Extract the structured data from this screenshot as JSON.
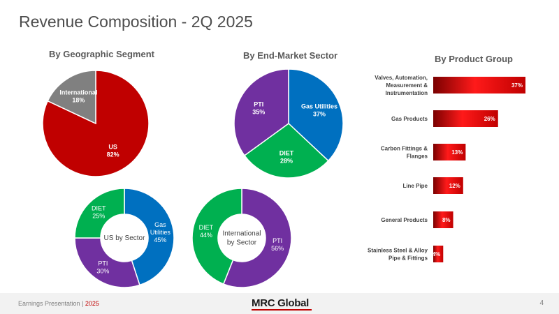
{
  "page": {
    "title": "Revenue Composition - 2Q 2025"
  },
  "sections": {
    "geographic": "By Geographic Segment",
    "end_market": "By End-Market Sector",
    "product": "By Product Group"
  },
  "footer": {
    "label": "Earnings Presentation",
    "separator": " | ",
    "year": "2025",
    "logo": "MRC Global",
    "page_number": "4"
  },
  "chart_data": [
    {
      "id": "geographic",
      "type": "pie",
      "title": "By Geographic Segment",
      "slices": [
        {
          "label": "US",
          "value": 82,
          "display": "82%",
          "color": "#c00000"
        },
        {
          "label": "International",
          "value": 18,
          "display": "18%",
          "color": "#808080"
        }
      ]
    },
    {
      "id": "end_market",
      "type": "pie",
      "title": "By End-Market Sector",
      "slices": [
        {
          "label": "Gas Utilities",
          "value": 37,
          "display": "37%",
          "color": "#0070c0"
        },
        {
          "label": "DIET",
          "value": 28,
          "display": "28%",
          "color": "#00b050"
        },
        {
          "label": "PTI",
          "value": 35,
          "display": "35%",
          "color": "#7030a0"
        }
      ]
    },
    {
      "id": "us_sector",
      "type": "pie",
      "subtype": "donut",
      "center_label": "US by Sector",
      "slices": [
        {
          "label": "Gas Utilities",
          "value": 45,
          "display": "45%",
          "color": "#0070c0"
        },
        {
          "label": "PTI",
          "value": 30,
          "display": "30%",
          "color": "#7030a0"
        },
        {
          "label": "DIET",
          "value": 25,
          "display": "25%",
          "color": "#00b050"
        }
      ]
    },
    {
      "id": "intl_sector",
      "type": "pie",
      "subtype": "donut",
      "center_label": "International by Sector",
      "slices": [
        {
          "label": "PTI",
          "value": 56,
          "display": "56%",
          "color": "#7030a0"
        },
        {
          "label": "DIET",
          "value": 44,
          "display": "44%",
          "color": "#00b050"
        }
      ]
    },
    {
      "id": "product",
      "type": "bar",
      "orientation": "horizontal",
      "title": "By Product Group",
      "categories": [
        "Valves, Automation, Measurement & Instrumentation",
        "Gas Products",
        "Carbon Fittings & Flanges",
        "Line Pipe",
        "General Products",
        "Stainless Steel & Alloy Pipe & Fittings"
      ],
      "values": [
        37,
        26,
        13,
        12,
        8,
        4
      ],
      "display": [
        "37%",
        "26%",
        "13%",
        "12%",
        "8%",
        "4%"
      ],
      "color": "#c00000"
    }
  ]
}
